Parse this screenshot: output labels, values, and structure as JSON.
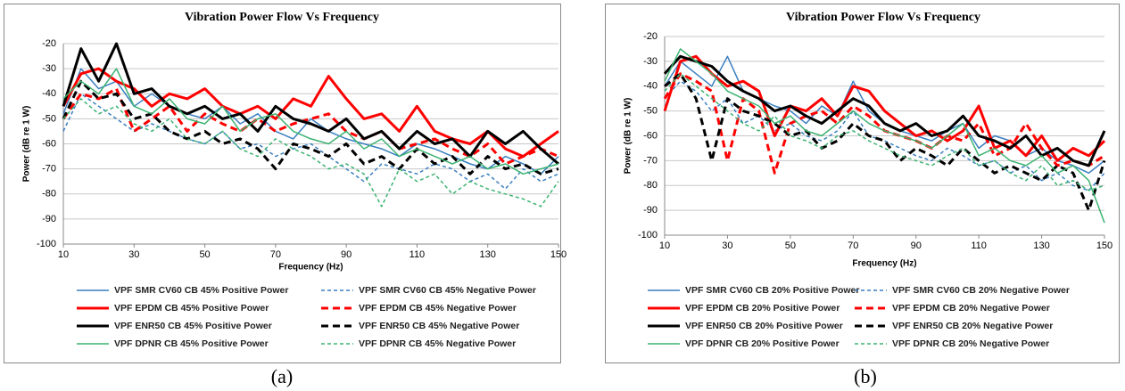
{
  "chart_data": [
    {
      "type": "line",
      "title": "Vibration Power Flow Vs Frequency",
      "x_label": "Frequency (Hz)",
      "y_label": "Power (dB re 1 W)",
      "caption": "(a)",
      "xlim": [
        10,
        150
      ],
      "ylim": [
        -100,
        -20
      ],
      "xticks": [
        10,
        30,
        50,
        70,
        90,
        110,
        130,
        150
      ],
      "yticks": [
        -20,
        -30,
        -40,
        -50,
        -60,
        -70,
        -80,
        -90,
        -100
      ],
      "grid": true,
      "x": [
        10,
        15,
        20,
        25,
        30,
        35,
        40,
        45,
        50,
        55,
        60,
        65,
        70,
        75,
        80,
        85,
        90,
        95,
        100,
        105,
        110,
        115,
        120,
        125,
        130,
        135,
        140,
        145,
        150
      ],
      "series": [
        {
          "name": "VPF SMR CV60 CB 45% Positive Power",
          "color": "#3a7fc1",
          "dashed": false,
          "width": 1.5,
          "values": [
            -48,
            -30,
            -38,
            -35,
            -45,
            -40,
            -45,
            -48,
            -50,
            -45,
            -52,
            -48,
            -55,
            -58,
            -50,
            -55,
            -58,
            -60,
            -62,
            -65,
            -60,
            -62,
            -65,
            -68,
            -70,
            -65,
            -68,
            -72,
            -65
          ]
        },
        {
          "name": "VPF SMR CV60 CB 45% Negative Power",
          "color": "#3a7fc1",
          "dashed": true,
          "width": 1.5,
          "values": [
            -55,
            -40,
            -45,
            -50,
            -55,
            -52,
            -55,
            -58,
            -60,
            -55,
            -62,
            -60,
            -65,
            -62,
            -60,
            -65,
            -70,
            -75,
            -68,
            -70,
            -72,
            -68,
            -70,
            -75,
            -72,
            -78,
            -70,
            -75,
            -72
          ]
        },
        {
          "name": "VPF EPDM CB 45% Positive Power",
          "color": "#ff0000",
          "dashed": false,
          "width": 3,
          "values": [
            -45,
            -32,
            -30,
            -35,
            -38,
            -45,
            -40,
            -42,
            -38,
            -45,
            -48,
            -45,
            -50,
            -42,
            -45,
            -33,
            -42,
            -50,
            -48,
            -55,
            -45,
            -55,
            -58,
            -60,
            -55,
            -62,
            -65,
            -60,
            -55
          ]
        },
        {
          "name": "VPF EPDM CB 45% Negative Power",
          "color": "#ff0000",
          "dashed": true,
          "width": 3,
          "values": [
            -50,
            -40,
            -42,
            -38,
            -55,
            -50,
            -45,
            -55,
            -48,
            -52,
            -55,
            -50,
            -55,
            -52,
            -50,
            -48,
            -55,
            -58,
            -55,
            -62,
            -60,
            -58,
            -62,
            -65,
            -60,
            -68,
            -65,
            -62,
            -65
          ]
        },
        {
          "name": "VPF ENR50 CB 45% Positive Power",
          "color": "#000000",
          "dashed": false,
          "width": 3,
          "values": [
            -45,
            -22,
            -35,
            -20,
            -40,
            -38,
            -45,
            -48,
            -45,
            -50,
            -48,
            -55,
            -45,
            -50,
            -52,
            -55,
            -50,
            -58,
            -55,
            -62,
            -55,
            -60,
            -58,
            -65,
            -55,
            -60,
            -55,
            -62,
            -68
          ]
        },
        {
          "name": "VPF ENR50 CB 45% Negative Power",
          "color": "#000000",
          "dashed": true,
          "width": 3,
          "values": [
            -50,
            -35,
            -42,
            -40,
            -50,
            -48,
            -55,
            -58,
            -55,
            -60,
            -58,
            -62,
            -70,
            -60,
            -62,
            -65,
            -60,
            -68,
            -65,
            -70,
            -62,
            -68,
            -65,
            -72,
            -65,
            -70,
            -68,
            -72,
            -70
          ]
        },
        {
          "name": "VPF DPNR CB 45% Positive Power",
          "color": "#3cb371",
          "dashed": false,
          "width": 1.5,
          "values": [
            -42,
            -35,
            -40,
            -30,
            -45,
            -48,
            -42,
            -50,
            -52,
            -45,
            -55,
            -50,
            -48,
            -55,
            -58,
            -60,
            -55,
            -62,
            -58,
            -65,
            -62,
            -65,
            -68,
            -65,
            -70,
            -68,
            -72,
            -70,
            -68
          ]
        },
        {
          "name": "VPF DPNR CB 45% Negative Power",
          "color": "#3cb371",
          "dashed": true,
          "width": 1.5,
          "values": [
            -50,
            -42,
            -48,
            -45,
            -52,
            -55,
            -50,
            -58,
            -60,
            -55,
            -62,
            -65,
            -58,
            -62,
            -65,
            -70,
            -68,
            -72,
            -85,
            -70,
            -75,
            -72,
            -80,
            -75,
            -78,
            -80,
            -82,
            -85,
            -75
          ]
        }
      ]
    },
    {
      "type": "line",
      "title": "Vibration Power Flow Vs Frequency",
      "x_label": "Frequency (Hz)",
      "y_label": "Power (dB re 1 W)",
      "caption": "(b)",
      "xlim": [
        10,
        150
      ],
      "ylim": [
        -100,
        -20
      ],
      "xticks": [
        10,
        30,
        50,
        70,
        90,
        110,
        130,
        150
      ],
      "yticks": [
        -20,
        -30,
        -40,
        -50,
        -60,
        -70,
        -80,
        -90,
        -100
      ],
      "grid": true,
      "x": [
        10,
        15,
        20,
        25,
        30,
        35,
        40,
        45,
        50,
        55,
        60,
        65,
        70,
        75,
        80,
        85,
        90,
        95,
        100,
        105,
        110,
        115,
        120,
        125,
        130,
        135,
        140,
        145,
        150
      ],
      "series": [
        {
          "name": "VPF SMR CV60 CB 20% Positive Power",
          "color": "#3a7fc1",
          "dashed": false,
          "width": 1.5,
          "values": [
            -40,
            -30,
            -35,
            -40,
            -28,
            -42,
            -45,
            -48,
            -50,
            -55,
            -48,
            -52,
            -38,
            -50,
            -55,
            -58,
            -60,
            -62,
            -58,
            -55,
            -65,
            -60,
            -62,
            -68,
            -65,
            -70,
            -72,
            -75,
            -70
          ]
        },
        {
          "name": "VPF SMR CV60 CB 20% Negative Power",
          "color": "#3a7fc1",
          "dashed": true,
          "width": 1.5,
          "values": [
            -45,
            -38,
            -42,
            -50,
            -45,
            -55,
            -52,
            -58,
            -55,
            -60,
            -62,
            -58,
            -50,
            -60,
            -62,
            -65,
            -68,
            -70,
            -65,
            -68,
            -72,
            -70,
            -75,
            -72,
            -78,
            -75,
            -80,
            -82,
            -75
          ]
        },
        {
          "name": "VPF EPDM CB 20% Positive Power",
          "color": "#ff0000",
          "dashed": false,
          "width": 3,
          "values": [
            -50,
            -30,
            -28,
            -35,
            -40,
            -38,
            -42,
            -60,
            -48,
            -50,
            -45,
            -52,
            -40,
            -42,
            -50,
            -55,
            -60,
            -58,
            -62,
            -58,
            -48,
            -65,
            -62,
            -68,
            -60,
            -70,
            -65,
            -68,
            -62
          ]
        },
        {
          "name": "VPF EPDM CB 20% Negative Power",
          "color": "#ff0000",
          "dashed": true,
          "width": 3,
          "values": [
            -45,
            -35,
            -38,
            -42,
            -70,
            -45,
            -50,
            -75,
            -55,
            -52,
            -50,
            -55,
            -48,
            -52,
            -58,
            -60,
            -62,
            -65,
            -60,
            -62,
            -55,
            -68,
            -65,
            -55,
            -65,
            -72,
            -70,
            -72,
            -68
          ]
        },
        {
          "name": "VPF ENR50 CB 20% Positive Power",
          "color": "#000000",
          "dashed": false,
          "width": 3,
          "values": [
            -35,
            -28,
            -30,
            -32,
            -38,
            -42,
            -45,
            -50,
            -48,
            -52,
            -55,
            -50,
            -45,
            -48,
            -55,
            -58,
            -55,
            -60,
            -58,
            -52,
            -60,
            -62,
            -65,
            -60,
            -68,
            -65,
            -70,
            -72,
            -58
          ]
        },
        {
          "name": "VPF ENR50 CB 20% Negative Power",
          "color": "#000000",
          "dashed": true,
          "width": 3,
          "values": [
            -40,
            -35,
            -45,
            -70,
            -45,
            -50,
            -52,
            -55,
            -60,
            -58,
            -65,
            -62,
            -55,
            -60,
            -62,
            -70,
            -65,
            -68,
            -72,
            -65,
            -70,
            -75,
            -72,
            -75,
            -78,
            -72,
            -75,
            -90,
            -70
          ]
        },
        {
          "name": "VPF DPNR CB 20% Positive Power",
          "color": "#3cb371",
          "dashed": false,
          "width": 1.5,
          "values": [
            -38,
            -25,
            -30,
            -35,
            -42,
            -45,
            -48,
            -55,
            -52,
            -58,
            -60,
            -55,
            -50,
            -55,
            -58,
            -60,
            -62,
            -65,
            -60,
            -55,
            -68,
            -65,
            -70,
            -72,
            -68,
            -75,
            -72,
            -78,
            -95
          ]
        },
        {
          "name": "VPF DPNR CB 20% Negative Power",
          "color": "#3cb371",
          "dashed": true,
          "width": 1.5,
          "values": [
            -42,
            -35,
            -40,
            -45,
            -50,
            -55,
            -58,
            -52,
            -60,
            -62,
            -65,
            -60,
            -58,
            -62,
            -65,
            -68,
            -70,
            -72,
            -68,
            -65,
            -72,
            -70,
            -75,
            -78,
            -72,
            -80,
            -78,
            -82,
            -80
          ]
        }
      ]
    }
  ]
}
